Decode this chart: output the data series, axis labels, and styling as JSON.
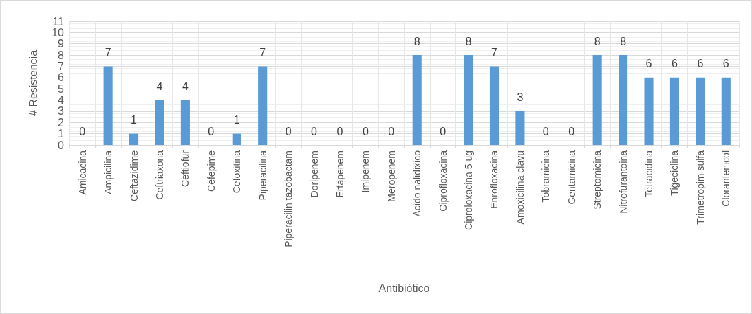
{
  "chart_data": {
    "type": "bar",
    "xlabel": "Antibiótico",
    "ylabel": "# Resistencia",
    "categories": [
      "Amicacina",
      "Ampicilina",
      "Ceftazidime",
      "Ceftriaxona",
      "Ceftiofur",
      "Cefepime",
      "Cefoxitina",
      "Piperacilina",
      "Piperacilin tazobactam",
      "Doripenem",
      "Ertapenem",
      "Imipenem",
      "Meropenem",
      "Acido nalidixico",
      "Ciprofloxacina",
      "Ciproloxacina 5 ug",
      "Enrofloxacina",
      "Amoxicilina clavu",
      "Tobramicina",
      "Gentamicina",
      "Streptomicina",
      "Nitrofurantoina",
      "Tetracidina",
      "Tigeciclina",
      "Trimetropim sulfa",
      "Cloranfenicol"
    ],
    "values": [
      0,
      7,
      1,
      4,
      4,
      0,
      1,
      7,
      0,
      0,
      0,
      0,
      0,
      8,
      0,
      8,
      7,
      3,
      0,
      0,
      8,
      8,
      6,
      6,
      6,
      6
    ],
    "color": "#5b9bd5",
    "ylim": [
      0,
      11
    ],
    "yticks": [
      0,
      1,
      2,
      3,
      4,
      5,
      6,
      7,
      8,
      9,
      10,
      11
    ],
    "grid": true,
    "data_labels": true
  }
}
